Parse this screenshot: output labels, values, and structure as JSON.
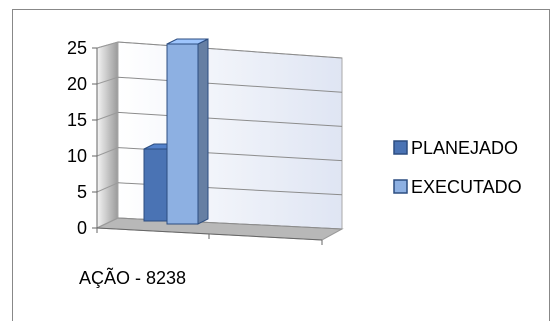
{
  "chart_data": {
    "type": "bar",
    "title": "",
    "xlabel": "",
    "ylabel": "",
    "categories": [
      "AÇÃO - 8238"
    ],
    "series": [
      {
        "name": "PLANEJADO",
        "values": [
          10
        ],
        "color": "#4a73b4"
      },
      {
        "name": "EXECUTADO",
        "values": [
          25
        ],
        "color": "#8db0e2"
      }
    ],
    "ylim": [
      0,
      25
    ],
    "yticks": [
      "0",
      "5",
      "10",
      "15",
      "20",
      "25"
    ],
    "grid": true,
    "legend_position": "right",
    "style": "3d-clustered-column"
  }
}
